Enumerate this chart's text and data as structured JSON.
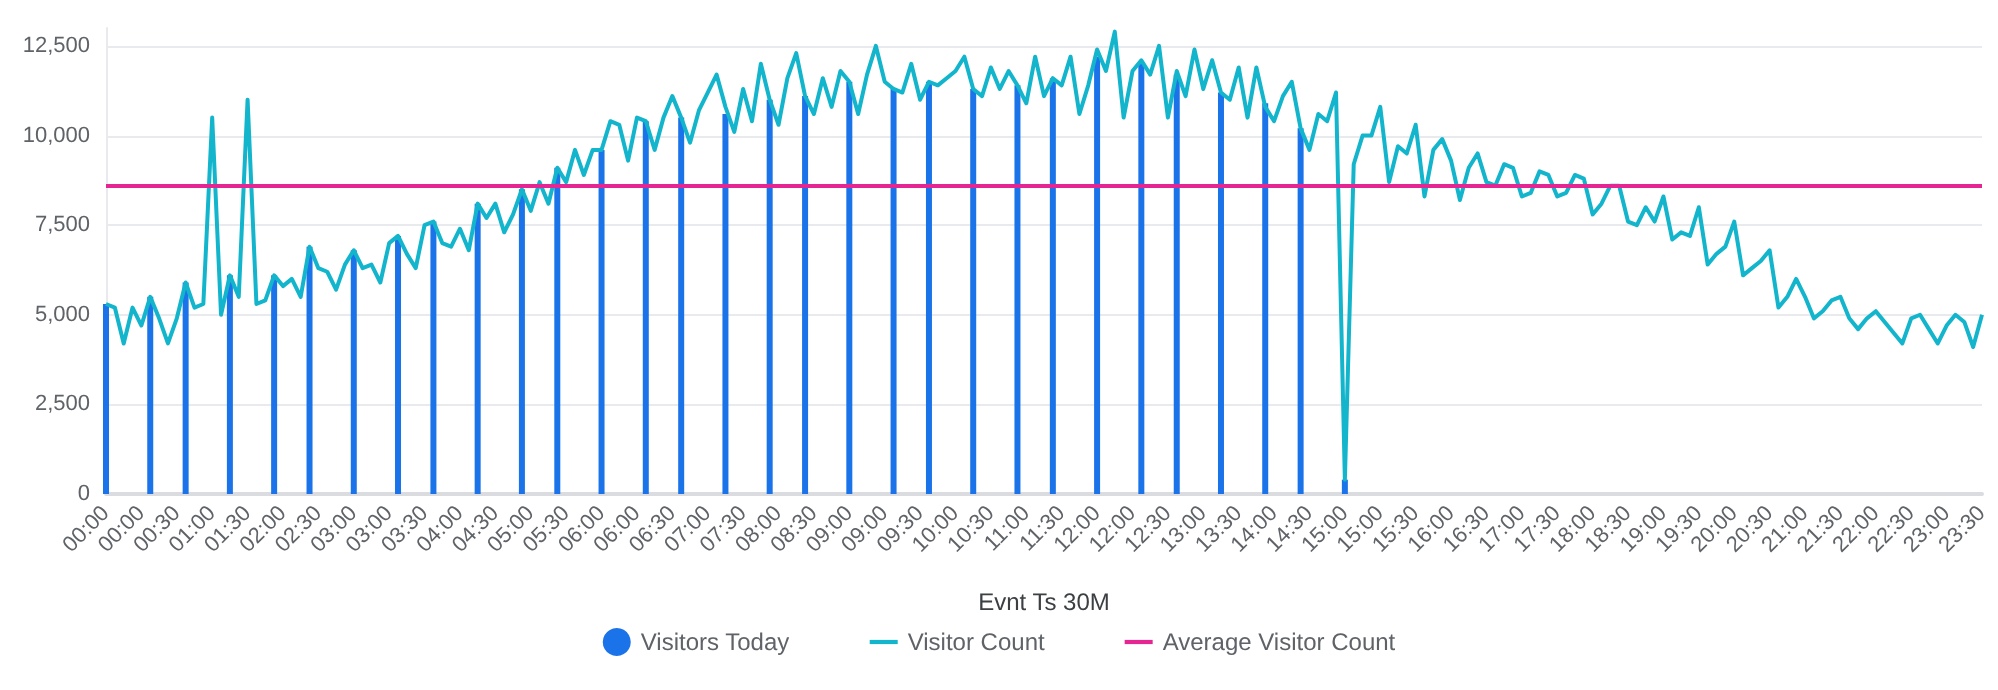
{
  "chart_data": {
    "type": "bar",
    "xlabel": "Evnt Ts 30M",
    "legend": "bottom",
    "grid": "y",
    "marker": "none",
    "categories": [
      "00:00",
      null,
      null,
      null,
      "00:00",
      null,
      null,
      null,
      "00:30",
      null,
      null,
      null,
      "01:00",
      null,
      null,
      null,
      "01:30",
      null,
      null,
      null,
      "02:00",
      null,
      null,
      null,
      "02:30",
      null,
      null,
      null,
      "03:00",
      null,
      null,
      null,
      "03:00",
      null,
      null,
      null,
      "03:30",
      null,
      null,
      null,
      "04:00",
      null,
      null,
      null,
      "04:30",
      null,
      null,
      null,
      "05:00",
      null,
      null,
      null,
      "05:30",
      null,
      null,
      null,
      "06:00",
      null,
      null,
      null,
      "06:00",
      null,
      null,
      null,
      "06:30",
      null,
      null,
      null,
      "07:00",
      null,
      null,
      null,
      "07:30",
      null,
      null,
      null,
      "08:00",
      null,
      null,
      null,
      "08:30",
      null,
      null,
      null,
      "09:00",
      null,
      null,
      null,
      "09:00",
      null,
      null,
      null,
      "09:30",
      null,
      null,
      null,
      "10:00",
      null,
      null,
      null,
      "10:30",
      null,
      null,
      null,
      "11:00",
      null,
      null,
      null,
      "11:30",
      null,
      null,
      null,
      "12:00",
      null,
      null,
      null,
      "12:00",
      null,
      null,
      null,
      "12:30",
      null,
      null,
      null,
      "13:00",
      null,
      null,
      null,
      "13:30",
      null,
      null,
      null,
      "14:00",
      null,
      null,
      null,
      "14:30",
      null,
      null,
      null,
      "15:00",
      null,
      null,
      null,
      "15:00",
      null,
      null,
      null,
      "15:30",
      null,
      null,
      null,
      "16:00",
      null,
      null,
      null,
      "16:30",
      null,
      null,
      null,
      "17:00",
      null,
      null,
      null,
      "17:30",
      null,
      null,
      null,
      "18:00",
      null,
      null,
      null,
      "18:30",
      null,
      null,
      null,
      "19:00",
      null,
      null,
      null,
      "19:30",
      null,
      null,
      null,
      "20:00",
      null,
      null,
      null,
      "20:30",
      null,
      null,
      null,
      "21:00",
      null,
      null,
      null,
      "21:30",
      null,
      null,
      null,
      "22:00",
      null,
      null,
      null,
      "22:30",
      null,
      null,
      null,
      "23:00",
      null,
      null,
      null,
      "23:30"
    ],
    "ylim": [
      0,
      13000
    ],
    "yticks": [
      0,
      {
        "value": 2500,
        "label": "2,500"
      },
      {
        "value": 5000,
        "label": "5,000"
      },
      {
        "value": 7500,
        "label": "7,500"
      },
      {
        "value": 10000,
        "label": "10,000"
      },
      {
        "value": 12500,
        "label": "12,500"
      }
    ],
    "series": [
      {
        "name": "Visitors Today",
        "color": "#1a73e8",
        "values": [
          5300,
          null,
          null,
          null,
          null,
          5500,
          null,
          null,
          null,
          5900,
          null,
          null,
          null,
          null,
          6100,
          null,
          null,
          null,
          null,
          6100,
          null,
          null,
          null,
          6900,
          null,
          null,
          null,
          null,
          6800,
          null,
          null,
          null,
          null,
          7200,
          null,
          null,
          null,
          7600,
          null,
          null,
          null,
          null,
          8100,
          null,
          null,
          null,
          null,
          8500,
          null,
          null,
          null,
          9100,
          null,
          null,
          null,
          null,
          9600,
          null,
          null,
          null,
          null,
          10400,
          null,
          null,
          null,
          10500,
          null,
          null,
          null,
          null,
          10600,
          null,
          null,
          null,
          null,
          11000,
          null,
          null,
          null,
          11100,
          null,
          null,
          null,
          null,
          11500,
          null,
          null,
          null,
          null,
          11300,
          null,
          null,
          null,
          11500,
          null,
          null,
          null,
          null,
          11300,
          null,
          null,
          null,
          null,
          11400,
          null,
          null,
          null,
          11600,
          null,
          null,
          null,
          null,
          12200,
          null,
          null,
          null,
          null,
          12000,
          null,
          null,
          null,
          11700,
          null,
          null,
          null,
          null,
          11200,
          null,
          null,
          null,
          null,
          10900,
          null,
          null,
          null,
          10200,
          null,
          null,
          null,
          null,
          400,
          null,
          null,
          null,
          null,
          null,
          null,
          null,
          null,
          null,
          null,
          null,
          null,
          null,
          null,
          null,
          null,
          null,
          null,
          null,
          null,
          null,
          null,
          null,
          null,
          null,
          null,
          null,
          null,
          null,
          null,
          null,
          null,
          null,
          null,
          null,
          null,
          null,
          null,
          null,
          null,
          null,
          null,
          null,
          null,
          null,
          null,
          null,
          null,
          null,
          null,
          null,
          null,
          null,
          null,
          null,
          null,
          null,
          null,
          null,
          null,
          null,
          null,
          null,
          null,
          null,
          null,
          null,
          null,
          null,
          null,
          null,
          null
        ]
      },
      {
        "name": "Visitor Count",
        "type": "line",
        "color": "#12b5cb",
        "values": [
          5300,
          5200,
          4200,
          5200,
          4700,
          5500,
          4900,
          4200,
          4900,
          5900,
          5200,
          5300,
          10500,
          5000,
          6100,
          5500,
          11000,
          5300,
          5400,
          6100,
          5800,
          6000,
          5500,
          6900,
          6300,
          6200,
          5700,
          6400,
          6800,
          6300,
          6400,
          5900,
          7000,
          7200,
          6700,
          6300,
          7500,
          7600,
          7000,
          6900,
          7400,
          6800,
          8100,
          7700,
          8100,
          7300,
          7800,
          8500,
          7900,
          8700,
          8100,
          9100,
          8700,
          9600,
          8900,
          9600,
          9600,
          10400,
          10300,
          9300,
          10500,
          10400,
          9600,
          10500,
          11100,
          10500,
          9800,
          10700,
          11200,
          11700,
          10800,
          10100,
          11300,
          10400,
          12000,
          11000,
          10300,
          11600,
          12300,
          11100,
          10600,
          11600,
          10800,
          11800,
          11500,
          10600,
          11700,
          12500,
          11500,
          11300,
          11200,
          12000,
          11000,
          11500,
          11400,
          11600,
          11800,
          12200,
          11300,
          11100,
          11900,
          11300,
          11800,
          11400,
          10900,
          12200,
          11100,
          11600,
          11400,
          12200,
          10600,
          11400,
          12400,
          11800,
          12900,
          10500,
          11800,
          12100,
          11700,
          12500,
          10500,
          11800,
          11100,
          12400,
          11300,
          12100,
          11200,
          11000,
          11900,
          10500,
          11900,
          10800,
          10400,
          11100,
          11500,
          10200,
          9600,
          10600,
          10400,
          11200,
          400,
          9200,
          10000,
          10000,
          10800,
          8700,
          9700,
          9500,
          10300,
          8300,
          9600,
          9900,
          9300,
          8200,
          9100,
          9500,
          8700,
          8600,
          9200,
          9100,
          8300,
          8400,
          9000,
          8900,
          8300,
          8400,
          8900,
          8800,
          7800,
          8100,
          8600,
          8600,
          7600,
          7500,
          8000,
          7600,
          8300,
          7100,
          7300,
          7200,
          8000,
          6400,
          6700,
          6900,
          7600,
          6100,
          6300,
          6500,
          6800,
          5200,
          5500,
          6000,
          5500,
          4900,
          5100,
          5400,
          5500,
          4900,
          4600,
          4900,
          5100,
          4800,
          4500,
          4200,
          4900,
          5000,
          4600,
          4200,
          4700,
          5000,
          4800,
          4100,
          5000
        ]
      }
    ],
    "ref_lines": [
      {
        "axis": "y",
        "value": 8600,
        "label": "Average Visitor Count",
        "color": "#e52592"
      }
    ]
  }
}
